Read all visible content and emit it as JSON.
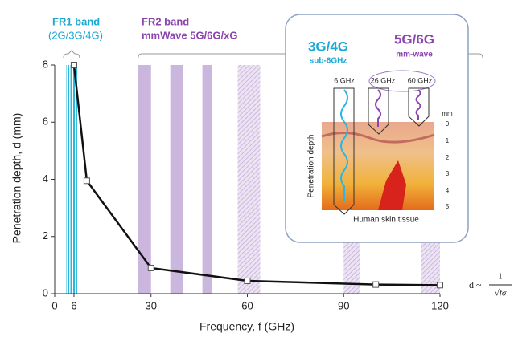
{
  "chart_data": {
    "type": "line",
    "x": [
      6,
      10,
      30,
      60,
      100,
      120
    ],
    "values": [
      8,
      3.95,
      0.9,
      0.45,
      0.32,
      0.3
    ],
    "color": "#111111",
    "xlim": [
      0,
      120
    ],
    "xticks": [
      0,
      6,
      30,
      60,
      90,
      120
    ],
    "ylim": [
      0,
      8
    ],
    "yticks": [
      0,
      2,
      4,
      6,
      8
    ],
    "xlabel": "Frequency, f (GHz)",
    "ylabel": "Penetration depth, d (mm)",
    "fr1": {
      "title": "FR1 band",
      "subtitle": "(2G/3G/4G)",
      "range": [
        3.5,
        7
      ],
      "color": "#2ab7da"
    },
    "fr2": {
      "title": "FR2 band",
      "subtitle": "mmWave 5G/6G/xG",
      "color": "#cbb6dd",
      "bands": [
        {
          "range": [
            26,
            30
          ],
          "style": "solid"
        },
        {
          "range": [
            36,
            40
          ],
          "style": "solid"
        },
        {
          "range": [
            46,
            49
          ],
          "style": "solid"
        },
        {
          "range": [
            57,
            64
          ],
          "style": "hatched"
        },
        {
          "range": [
            90,
            95
          ],
          "style": "hatched"
        },
        {
          "range": [
            114,
            120
          ],
          "style": "hatched"
        }
      ]
    },
    "formula": {
      "lhs": "d ~",
      "numerator": "1",
      "denominator": "√fσ"
    }
  },
  "inset": {
    "left_title": "3G/4G",
    "left_sub": "sub-6GHz",
    "right_title": "5G/6G",
    "right_sub": "mm-wave",
    "freq_labels": [
      "6 GHz",
      "26 GHz",
      "60 GHz"
    ],
    "unit": "mm",
    "scale": [
      "0",
      "1",
      "2",
      "3",
      "4",
      "5"
    ],
    "side_label": "Penetration depth",
    "bottom_label": "Human skin tissue"
  }
}
